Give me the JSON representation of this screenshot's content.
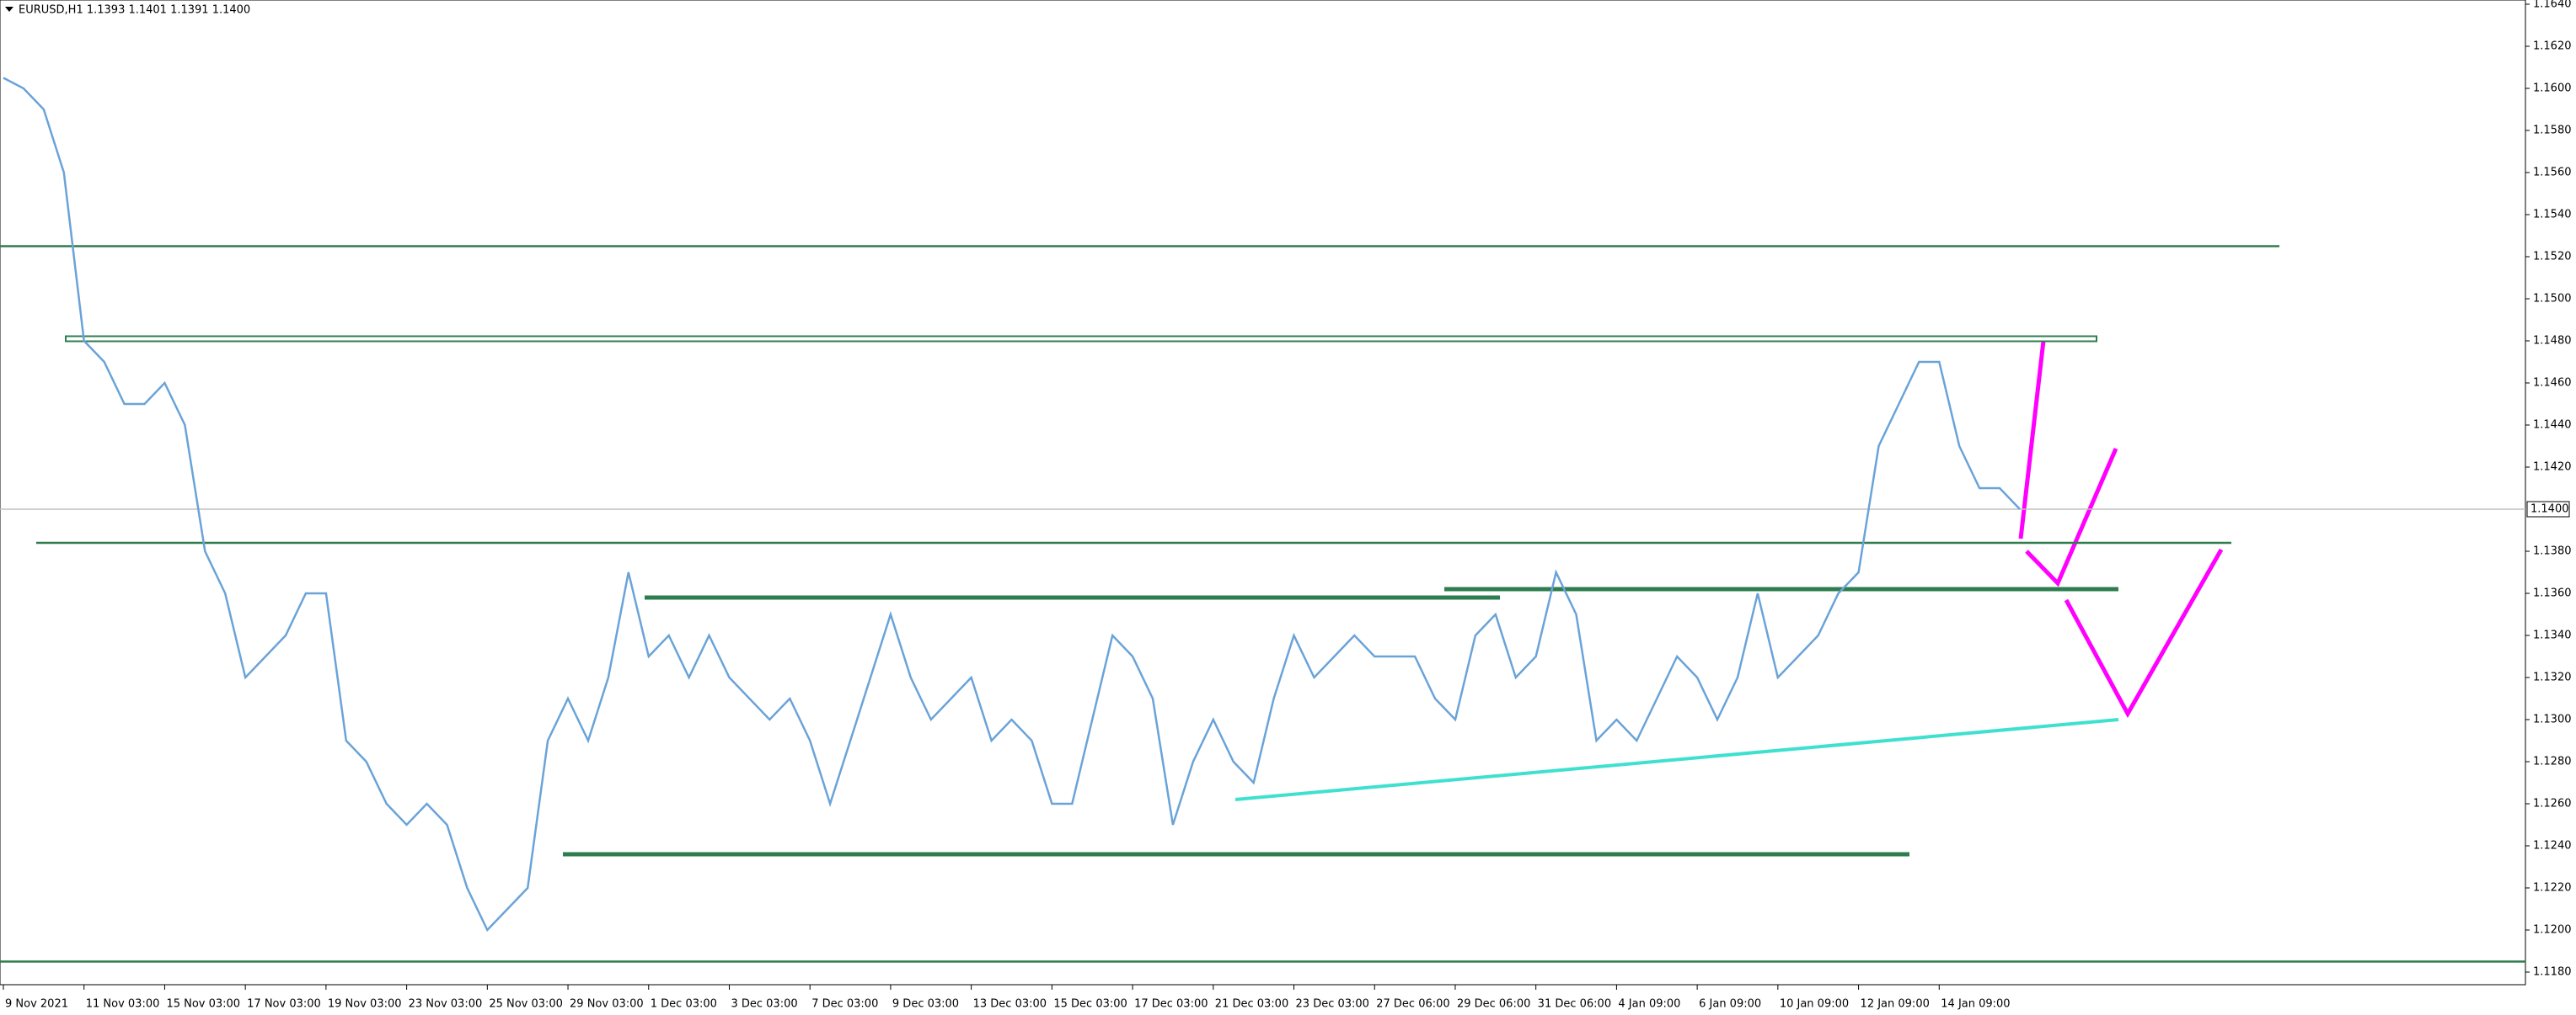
{
  "chart_data": {
    "type": "line",
    "title": "EURUSD,H1  1.1393 1.1401 1.1391 1.1400",
    "categories": [
      "9 Nov 2021",
      null,
      null,
      null,
      "11 Nov 03:00",
      null,
      null,
      null,
      "15 Nov 03:00",
      null,
      null,
      null,
      "17 Nov 03:00",
      null,
      null,
      null,
      "19 Nov 03:00",
      null,
      null,
      null,
      "23 Nov 03:00",
      null,
      null,
      null,
      "25 Nov 03:00",
      null,
      null,
      null,
      "29 Nov 03:00",
      null,
      null,
      null,
      "1 Dec 03:00",
      null,
      null,
      null,
      "3 Dec 03:00",
      null,
      null,
      null,
      "7 Dec 03:00",
      null,
      null,
      null,
      "9 Dec 03:00",
      null,
      null,
      null,
      "13 Dec 03:00",
      null,
      null,
      null,
      "15 Dec 03:00",
      null,
      null,
      null,
      "17 Dec 03:00",
      null,
      null,
      null,
      "21 Dec 03:00",
      null,
      null,
      null,
      "23 Dec 03:00",
      null,
      null,
      null,
      "27 Dec 06:00",
      null,
      null,
      null,
      "29 Dec 06:00",
      null,
      null,
      null,
      "31 Dec 06:00",
      null,
      null,
      null,
      "4 Jan 09:00",
      null,
      null,
      null,
      "6 Jan 09:00",
      null,
      null,
      null,
      "10 Jan 09:00",
      null,
      null,
      null,
      "12 Jan 09:00",
      null,
      null,
      null,
      "14 Jan 09:00",
      null,
      null,
      null,
      null
    ],
    "series": [
      {
        "name": "EURUSD",
        "color": "#6aa3d8",
        "values": [
          1.1605,
          1.16,
          1.159,
          1.156,
          1.148,
          1.147,
          1.145,
          1.145,
          1.146,
          1.144,
          1.138,
          1.136,
          1.132,
          1.133,
          1.134,
          1.136,
          1.136,
          1.129,
          1.128,
          1.126,
          1.125,
          1.126,
          1.125,
          1.122,
          1.12,
          1.121,
          1.122,
          1.129,
          1.131,
          1.129,
          1.132,
          1.137,
          1.133,
          1.134,
          1.132,
          1.134,
          1.132,
          1.131,
          1.13,
          1.131,
          1.129,
          1.126,
          1.129,
          1.132,
          1.135,
          1.132,
          1.13,
          1.131,
          1.132,
          1.129,
          1.13,
          1.129,
          1.126,
          1.126,
          1.13,
          1.134,
          1.133,
          1.131,
          1.125,
          1.128,
          1.13,
          1.128,
          1.127,
          1.131,
          1.134,
          1.132,
          1.133,
          1.134,
          1.133,
          1.133,
          1.133,
          1.131,
          1.13,
          1.134,
          1.135,
          1.132,
          1.133,
          1.137,
          1.135,
          1.129,
          1.13,
          1.129,
          1.131,
          1.133,
          1.132,
          1.13,
          1.132,
          1.136,
          1.132,
          1.133,
          1.134,
          1.136,
          1.137,
          1.143,
          1.145,
          1.147,
          1.147,
          1.143,
          1.141,
          1.141,
          1.14
        ]
      }
    ],
    "ylim": [
      1.1174,
      1.1642
    ],
    "yticks": [
      {
        "value": 1.118,
        "label": "1.1180"
      },
      {
        "value": 1.12,
        "label": "1.1200"
      },
      {
        "value": 1.122,
        "label": "1.1220"
      },
      {
        "value": 1.124,
        "label": "1.1240"
      },
      {
        "value": 1.126,
        "label": "1.1260"
      },
      {
        "value": 1.128,
        "label": "1.1280"
      },
      {
        "value": 1.13,
        "label": "1.1300"
      },
      {
        "value": 1.132,
        "label": "1.1320"
      },
      {
        "value": 1.134,
        "label": "1.1340"
      },
      {
        "value": 1.136,
        "label": "1.1360"
      },
      {
        "value": 1.138,
        "label": "1.1380"
      },
      {
        "value": 1.142,
        "label": "1.1420"
      },
      {
        "value": 1.144,
        "label": "1.1440"
      },
      {
        "value": 1.146,
        "label": "1.1460"
      },
      {
        "value": 1.148,
        "label": "1.1480"
      },
      {
        "value": 1.15,
        "label": "1.1500"
      },
      {
        "value": 1.152,
        "label": "1.1520"
      },
      {
        "value": 1.154,
        "label": "1.1540"
      },
      {
        "value": 1.156,
        "label": "1.1560"
      },
      {
        "value": 1.158,
        "label": "1.1580"
      },
      {
        "value": 1.16,
        "label": "1.1600"
      },
      {
        "value": 1.162,
        "label": "1.1620"
      },
      {
        "value": 1.164,
        "label": "1.1640"
      }
    ],
    "last_price": {
      "value": 1.14,
      "label": "1.1400"
    },
    "levels": [
      1.1525,
      1.1481,
      1.1384,
      1.1358,
      1.1362,
      1.1236,
      1.1185
    ],
    "level_color": "#2e7d4f",
    "trendline": [
      1.1262,
      1.13
    ],
    "trendline_color": "#40e0d0"
  }
}
